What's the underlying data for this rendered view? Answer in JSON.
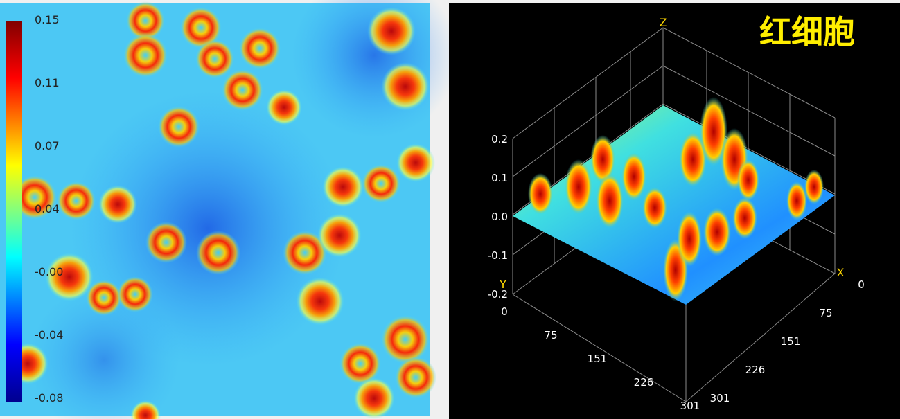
{
  "left_panel": {
    "colorbar_ticks": [
      "0.15",
      "0.11",
      "0.07",
      "0.04",
      "-0.00",
      "-0.04",
      "-0.08"
    ]
  },
  "right_panel": {
    "title": "红细胞",
    "axis_labels": {
      "x": "X",
      "y": "Y",
      "z": "Z"
    },
    "z_ticks": [
      "0.2",
      "0.1",
      "0.0",
      "-0.1",
      "-0.2"
    ],
    "y_ticks": [
      "0",
      "75",
      "151",
      "226",
      "301"
    ],
    "x_ticks": [
      "0",
      "75",
      "151",
      "226",
      "301"
    ]
  }
}
